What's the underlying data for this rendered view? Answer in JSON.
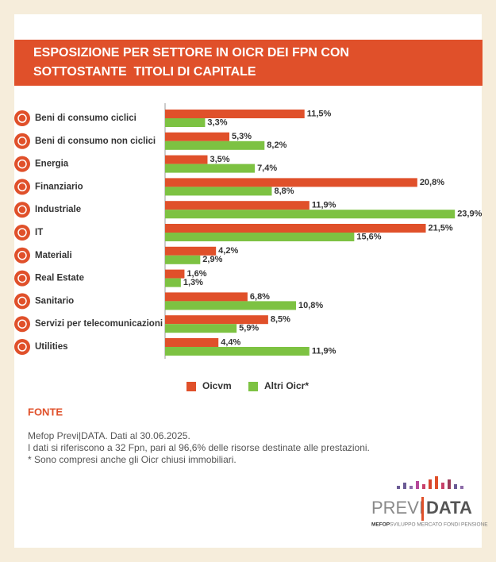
{
  "chart_data": {
    "type": "hbar",
    "title": [
      "ESPOSIZIONE PER SETTORE IN OICR DEI FPN CON",
      "SOTTOSTANTE  TITOLI DI CAPITALE"
    ],
    "categories": [
      "Beni di consumo ciclici",
      "Beni di consumo non ciclici",
      "Energia",
      "Finanziario",
      "Industriale",
      "IT",
      "Materiali",
      "Real Estate",
      "Sanitario",
      "Servizi per telecomunicazioni",
      "Utilities"
    ],
    "series": [
      {
        "name": "Oicvm",
        "color": "#e0502a",
        "values": [
          11.5,
          5.3,
          3.5,
          20.8,
          11.9,
          21.5,
          4.2,
          1.6,
          6.8,
          8.5,
          4.4
        ],
        "value_labels": [
          "11,5%",
          "5,3%",
          "3,5%",
          "20,8%",
          "11,9%",
          "21,5%",
          "4,2%",
          "1,6%",
          "6,8%",
          "8,5%",
          "4,4%"
        ]
      },
      {
        "name": "Altri Oicr*",
        "color": "#7dc242",
        "values": [
          3.3,
          8.2,
          7.4,
          8.8,
          23.9,
          15.6,
          2.9,
          1.3,
          10.8,
          5.9,
          11.9
        ],
        "value_labels": [
          "3,3%",
          "8,2%",
          "7,4%",
          "8,8%",
          "23,9%",
          "15,6%",
          "2,9%",
          "1,3%",
          "10,8%",
          "5,9%",
          "11,9%"
        ]
      }
    ],
    "xlim": [
      0,
      25
    ],
    "legend": "bottom"
  },
  "source": {
    "heading": "FONTE",
    "lines": [
      "Mefop Previ|DATA. Dati al 30.06.2025.",
      "I dati si riferiscono a 32 Fpn, pari al 96,6% delle risorse destinate alle prestazioni.",
      "* Sono compresi anche gli Oicr chiusi immobiliari."
    ]
  },
  "logo": {
    "left": "PREVI",
    "right": "DATA",
    "brand": "MEFOP",
    "tagline": "SVILUPPO MERCATO FONDI PENSIONE"
  }
}
